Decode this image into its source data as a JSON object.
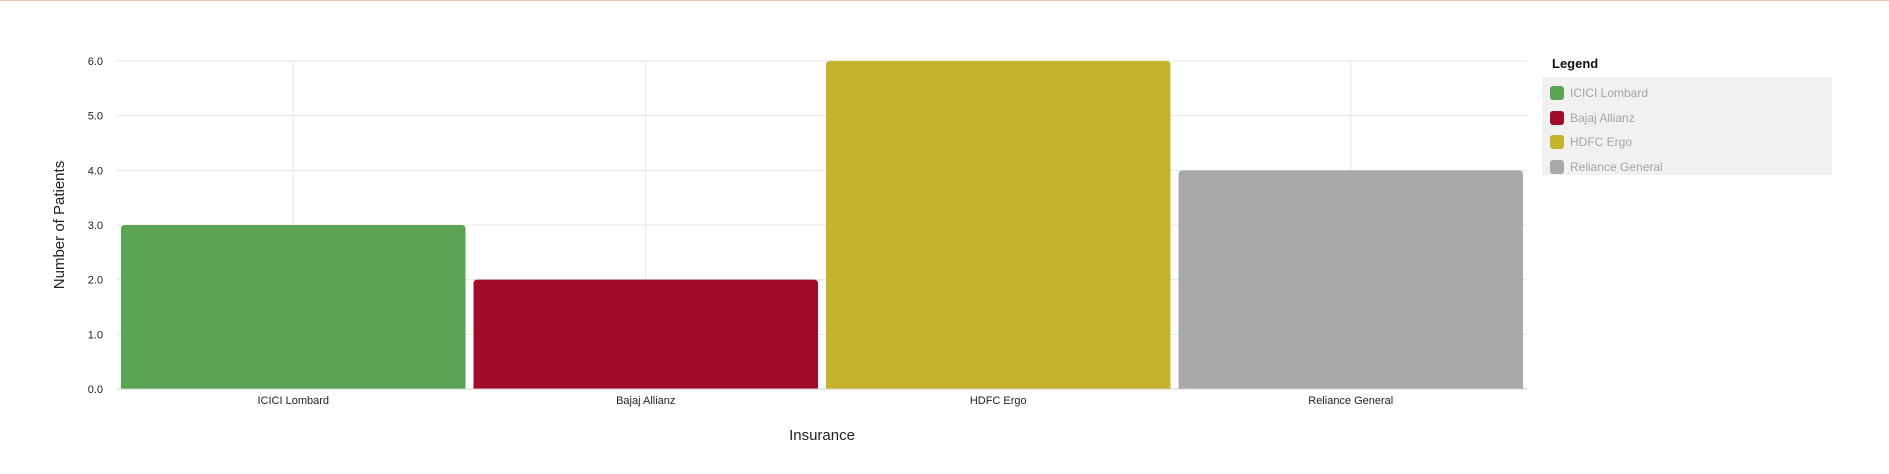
{
  "chart_data": {
    "type": "bar",
    "categories": [
      "ICICI Lombard",
      "Bajaj Allianz",
      "HDFC Ergo",
      "Reliance General"
    ],
    "values": [
      3,
      2,
      6,
      4
    ],
    "colors": [
      "#5ba454",
      "#a10c2c",
      "#c6b32c",
      "#a9a9a9"
    ],
    "xlabel": "Insurance",
    "ylabel": "Number of Patients",
    "ylim": [
      0,
      6
    ],
    "yticks": [
      "0.0",
      "1.0",
      "2.0",
      "3.0",
      "4.0",
      "5.0",
      "6.0"
    ],
    "grid": true,
    "legend": {
      "title": "Legend",
      "placement": "right",
      "items": [
        "ICICI Lombard",
        "Bajaj Allianz",
        "HDFC Ergo",
        "Reliance General"
      ]
    }
  }
}
